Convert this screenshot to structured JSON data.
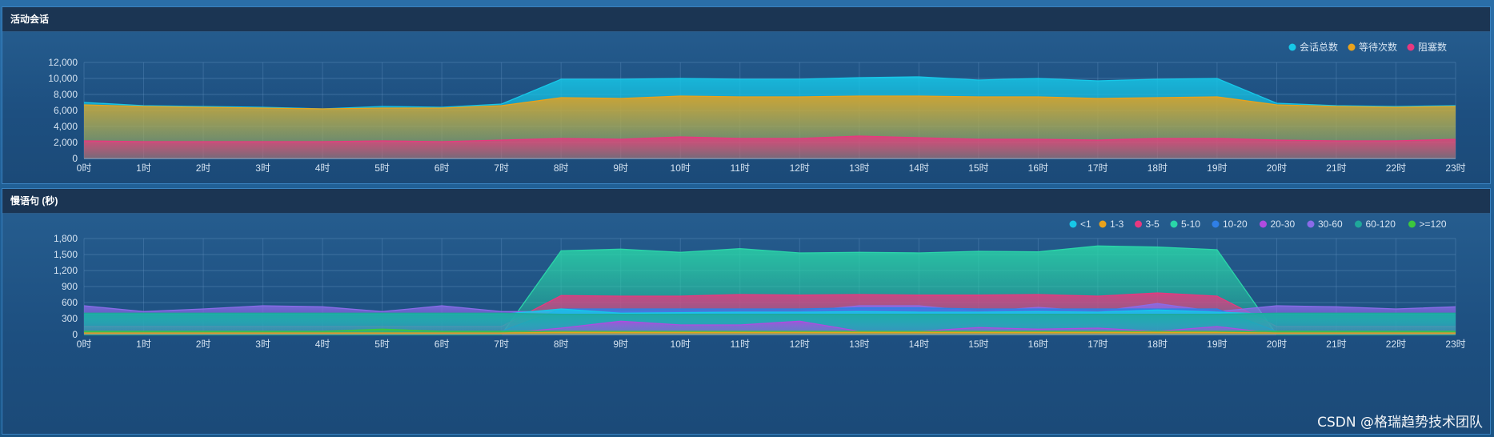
{
  "panels": [
    {
      "title": "活动会话"
    },
    {
      "title": "慢语句 (秒)"
    }
  ],
  "watermark": "CSDN @格瑞趋势技术团队",
  "chart_data": [
    {
      "type": "area",
      "title": "活动会话",
      "x": [
        "0时",
        "1时",
        "2时",
        "3时",
        "4时",
        "5时",
        "6时",
        "7时",
        "8时",
        "9时",
        "10时",
        "11时",
        "12时",
        "13时",
        "14时",
        "15时",
        "16时",
        "17时",
        "18时",
        "19时",
        "20时",
        "21时",
        "22时",
        "23时"
      ],
      "ylim": [
        0,
        12000
      ],
      "yticks": [
        0,
        2000,
        4000,
        6000,
        8000,
        10000,
        12000
      ],
      "ytick_labels": [
        "0",
        "2,000",
        "4,000",
        "6,000",
        "8,000",
        "10,000",
        "12,000"
      ],
      "grid": true,
      "legend": "top-right",
      "series": [
        {
          "name": "会话总数",
          "color": "#16c8e8",
          "values": [
            7000,
            6600,
            6500,
            6400,
            6200,
            6500,
            6400,
            6800,
            9900,
            9900,
            10000,
            9900,
            9900,
            10100,
            10200,
            9800,
            10000,
            9700,
            9900,
            10000,
            6900,
            6600,
            6500,
            6600
          ]
        },
        {
          "name": "等待次数",
          "color": "#e8a21c",
          "values": [
            6700,
            6500,
            6400,
            6300,
            6200,
            6300,
            6300,
            6600,
            7600,
            7500,
            7800,
            7700,
            7700,
            7800,
            7800,
            7700,
            7700,
            7500,
            7600,
            7700,
            6700,
            6500,
            6400,
            6500
          ]
        },
        {
          "name": "阻塞数",
          "color": "#e8387f",
          "values": [
            2200,
            2100,
            2100,
            2100,
            2100,
            2200,
            2100,
            2300,
            2500,
            2400,
            2700,
            2500,
            2500,
            2800,
            2600,
            2400,
            2400,
            2300,
            2500,
            2500,
            2300,
            2200,
            2200,
            2400
          ]
        }
      ]
    },
    {
      "type": "area",
      "title": "慢语句 (秒)",
      "x": [
        "0时",
        "1时",
        "2时",
        "3时",
        "4时",
        "5时",
        "6时",
        "7时",
        "8时",
        "9时",
        "10时",
        "11时",
        "12时",
        "13时",
        "14时",
        "15时",
        "16时",
        "17时",
        "18时",
        "19时",
        "20时",
        "21时",
        "22时",
        "23时"
      ],
      "ylim": [
        0,
        1800
      ],
      "yticks": [
        0,
        300,
        600,
        900,
        1200,
        1500,
        1800
      ],
      "ytick_labels": [
        "0",
        "300",
        "600",
        "900",
        "1,200",
        "1,500",
        "1,800"
      ],
      "grid": true,
      "legend": "top-right",
      "series": [
        {
          "name": "<1",
          "color": "#16c8e8",
          "values": [
            380,
            380,
            380,
            380,
            380,
            380,
            380,
            380,
            480,
            400,
            410,
            420,
            420,
            430,
            420,
            420,
            430,
            420,
            460,
            420,
            380,
            380,
            380,
            380
          ]
        },
        {
          "name": "1-3",
          "color": "#e8a21c",
          "values": [
            30,
            30,
            30,
            30,
            30,
            30,
            30,
            30,
            40,
            40,
            40,
            40,
            40,
            40,
            40,
            40,
            40,
            40,
            40,
            40,
            30,
            30,
            30,
            30
          ]
        },
        {
          "name": "3-5",
          "color": "#e8387f",
          "values": [
            150,
            150,
            150,
            150,
            150,
            150,
            150,
            150,
            730,
            720,
            720,
            750,
            740,
            750,
            740,
            740,
            750,
            720,
            780,
            720,
            150,
            150,
            150,
            150
          ]
        },
        {
          "name": "5-10",
          "color": "#2ad6a8",
          "values": [
            0,
            0,
            0,
            0,
            0,
            0,
            0,
            0,
            1570,
            1600,
            1540,
            1610,
            1530,
            1540,
            1530,
            1560,
            1550,
            1660,
            1640,
            1590,
            0,
            0,
            0,
            0
          ]
        },
        {
          "name": "10-20",
          "color": "#2f7fe6",
          "values": [
            60,
            60,
            60,
            60,
            60,
            60,
            60,
            60,
            480,
            480,
            480,
            480,
            480,
            500,
            500,
            480,
            480,
            480,
            480,
            480,
            60,
            60,
            60,
            60
          ]
        },
        {
          "name": "20-30",
          "color": "#b04be0",
          "values": [
            20,
            20,
            20,
            20,
            20,
            20,
            20,
            20,
            120,
            250,
            180,
            180,
            250,
            60,
            60,
            130,
            100,
            120,
            60,
            150,
            20,
            20,
            20,
            20
          ]
        },
        {
          "name": "30-60",
          "color": "#8a6be8",
          "values": [
            540,
            430,
            480,
            540,
            520,
            430,
            540,
            430,
            430,
            430,
            430,
            430,
            430,
            540,
            540,
            430,
            510,
            430,
            580,
            430,
            540,
            520,
            480,
            520
          ]
        },
        {
          "name": "60-120",
          "color": "#1fa89a",
          "values": [
            400,
            400,
            400,
            400,
            400,
            400,
            400,
            400,
            380,
            380,
            380,
            380,
            380,
            380,
            380,
            380,
            380,
            380,
            380,
            380,
            400,
            400,
            400,
            400
          ]
        },
        {
          "name": ">=120",
          "color": "#3cc83c",
          "values": [
            60,
            60,
            60,
            60,
            60,
            100,
            60,
            60,
            60,
            60,
            60,
            60,
            60,
            60,
            60,
            60,
            60,
            60,
            60,
            60,
            60,
            60,
            60,
            60
          ]
        }
      ]
    }
  ]
}
